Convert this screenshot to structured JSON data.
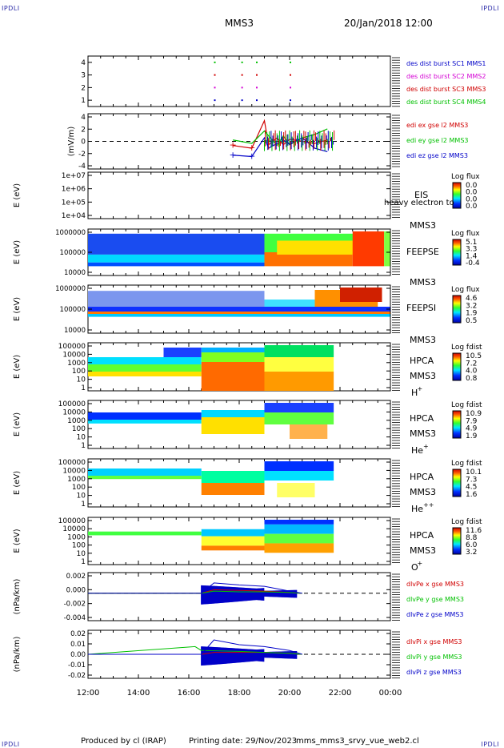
{
  "corners": {
    "tl": "IPDLI",
    "tr": "IPDLI",
    "bl": "IPDLI",
    "br": "IPDLI"
  },
  "header": {
    "spacecraft": "MMS3",
    "datetime": "20/Jan/2018 12:00"
  },
  "footer": {
    "produced_by": "Produced by cl (IRAP)",
    "printing_date": "Printing date: 29/Nov/2023",
    "filename": "mms_mms3_srvy_vue_web2.cl"
  },
  "colors": {
    "sc1": "#0000c8",
    "sc2": "#d400d4",
    "sc3": "#d00000",
    "sc4": "#00c000",
    "x": "#d00000",
    "y": "#00c000",
    "z": "#0000c8"
  },
  "chart_data": [
    {
      "type": "scatter",
      "panel": "dist-burst",
      "ylim": [
        0.5,
        4.5
      ],
      "ytick_labels": [
        "1",
        "2",
        "3",
        "4"
      ],
      "legend": [
        "des dist burst SC1 MMS1",
        "des dist burst SC2 MMS2",
        "des dist burst SC3 MMS3",
        "des dist burst SC4 MMS4"
      ],
      "series": [
        {
          "name": "des dist burst SC1 MMS1",
          "x": [
            "17:00",
            "18:05",
            "18:40",
            "20:00"
          ],
          "y": [
            1,
            1,
            1,
            1
          ]
        },
        {
          "name": "des dist burst SC2 MMS2",
          "x": [
            "17:00",
            "18:05",
            "18:40",
            "20:00"
          ],
          "y": [
            2,
            2,
            2,
            2
          ]
        },
        {
          "name": "des dist burst SC3 MMS3",
          "x": [
            "17:00",
            "18:05",
            "18:40",
            "20:00"
          ],
          "y": [
            3,
            3,
            3,
            3
          ]
        },
        {
          "name": "des dist burst SC4 MMS4",
          "x": [
            "17:00",
            "18:05",
            "18:40",
            "20:00"
          ],
          "y": [
            4,
            4,
            4,
            4
          ]
        }
      ]
    },
    {
      "type": "line",
      "panel": "edi",
      "ylabel": "(mV/m)",
      "ylim": [
        -4,
        4
      ],
      "ytick_labels": [
        "4",
        "2",
        "0",
        "-2",
        "-4"
      ],
      "legend": [
        "edi ex gse l2 MMS3",
        "edi ey gse l2 MMS3",
        "edi ez gse l2 MMS3"
      ],
      "series": [
        {
          "name": "edi ex gse l2 MMS3",
          "x": [
            "17:45",
            "18:30",
            "19:00",
            "19:10",
            "19:30",
            "19:45",
            "20:00",
            "20:30",
            "21:00",
            "21:30"
          ],
          "y": [
            -0.6,
            -1.0,
            3.0,
            -0.5,
            0.5,
            -0.5,
            0.3,
            0.0,
            -0.3,
            0.2
          ]
        },
        {
          "name": "edi ey gse l2 MMS3",
          "x": [
            "17:45",
            "18:30",
            "19:00",
            "19:10",
            "19:30",
            "19:45",
            "20:00",
            "20:30",
            "21:00",
            "21:30"
          ],
          "y": [
            0.2,
            -0.3,
            1.5,
            0.8,
            -0.6,
            0.8,
            -0.5,
            0.5,
            1.0,
            1.8
          ]
        },
        {
          "name": "edi ez gse l2 MMS3",
          "x": [
            "17:45",
            "18:30",
            "19:00",
            "19:10",
            "19:30",
            "19:45",
            "20:00",
            "20:30",
            "21:00",
            "21:30"
          ],
          "y": [
            -2.0,
            -2.2,
            0.5,
            -1.0,
            -0.3,
            0.2,
            -0.4,
            0.5,
            -1.0,
            -1.5
          ]
        }
      ]
    },
    {
      "type": "heatmap",
      "panel": "EIS",
      "ylabel": "E (eV)",
      "ytick_labels": [
        "1e+07",
        "1e+06",
        "1e+05",
        "1e+04"
      ],
      "instrument": "EIS",
      "overlay_label": "heavy electron to",
      "spacecraft_label": "MMS3",
      "colorbar": {
        "label": "Log flux",
        "ticks": [
          "0.0",
          "0.0",
          "0.0",
          "0.0"
        ]
      }
    },
    {
      "type": "heatmap",
      "panel": "FEEPSE",
      "ylabel": "E (eV)",
      "ytick_labels": [
        "1000000",
        "100000",
        "10000"
      ],
      "instrument": "FEEPSE",
      "spacecraft_label": "MMS3",
      "colorbar": {
        "label": "Log flux",
        "ticks": [
          "5.1",
          "3.3",
          "1.4",
          "-0.4"
        ]
      }
    },
    {
      "type": "heatmap",
      "panel": "FEEPSI",
      "ylabel": "E (eV)",
      "ytick_labels": [
        "1000000",
        "100000",
        "10000"
      ],
      "instrument": "FEEPSI",
      "spacecraft_label": "MMS3",
      "colorbar": {
        "label": "Log flux",
        "ticks": [
          "4.6",
          "3.2",
          "1.9",
          "0.5"
        ]
      }
    },
    {
      "type": "heatmap",
      "panel": "HPCA-H",
      "ylabel": "E (eV)",
      "ytick_labels": [
        "100000",
        "10000",
        "1000",
        "100",
        "10",
        "1"
      ],
      "instrument": "HPCA",
      "spacecraft_label": "MMS3",
      "species": "H",
      "species_sup": "+",
      "colorbar": {
        "label": "Log fdist",
        "ticks": [
          "10.5",
          "7.2",
          "4.0",
          "0.8"
        ]
      }
    },
    {
      "type": "heatmap",
      "panel": "HPCA-He+",
      "ylabel": "E (eV)",
      "ytick_labels": [
        "100000",
        "10000",
        "1000",
        "100",
        "10",
        "1"
      ],
      "instrument": "HPCA",
      "spacecraft_label": "MMS3",
      "species": "He",
      "species_sup": "+",
      "colorbar": {
        "label": "Log fdist",
        "ticks": [
          "10.9",
          "7.9",
          "4.9",
          "1.9"
        ]
      }
    },
    {
      "type": "heatmap",
      "panel": "HPCA-He++",
      "ylabel": "E (eV)",
      "ytick_labels": [
        "100000",
        "10000",
        "1000",
        "100",
        "10",
        "1"
      ],
      "instrument": "HPCA",
      "spacecraft_label": "MMS3",
      "species": "He",
      "species_sup": "++",
      "colorbar": {
        "label": "Log fdist",
        "ticks": [
          "10.1",
          "7.3",
          "4.5",
          "1.6"
        ]
      }
    },
    {
      "type": "heatmap",
      "panel": "HPCA-O+",
      "ylabel": "E (eV)",
      "ytick_labels": [
        "100000",
        "10000",
        "1000",
        "100",
        "10",
        "1"
      ],
      "instrument": "HPCA",
      "spacecraft_label": "MMS3",
      "species": "O",
      "species_sup": "+",
      "colorbar": {
        "label": "Log fdist",
        "ticks": [
          "11.6",
          "8.8",
          "6.0",
          "3.2"
        ]
      }
    },
    {
      "type": "line",
      "panel": "dlvPe",
      "ylabel": "(nPa/km)",
      "ylim": [
        -0.004,
        0.003
      ],
      "ytick_labels": [
        "0.002",
        "0.000",
        "-0.002",
        "-0.004"
      ],
      "legend": [
        "dlvPe x gse MMS3",
        "dlvPe y gse MMS3",
        "dlvPe z gse MMS3"
      ],
      "series": [
        {
          "name": "dlvPe x gse MMS3",
          "x": [
            "12:00",
            "16:30",
            "17:00",
            "18:00",
            "19:00",
            "20:00",
            "20:30"
          ],
          "y": [
            0,
            0,
            0.0005,
            0.0004,
            0.0003,
            0.0001,
            0
          ]
        },
        {
          "name": "dlvPe y gse MMS3",
          "x": [
            "12:00",
            "16:30",
            "17:00",
            "18:00",
            "19:00",
            "20:00",
            "20:30"
          ],
          "y": [
            0,
            0,
            0.0003,
            0.0002,
            0.0002,
            0.0001,
            0
          ]
        },
        {
          "name": "dlvPe z gse MMS3",
          "x": [
            "12:00",
            "16:30",
            "17:00",
            "18:00",
            "19:00",
            "20:00",
            "20:30"
          ],
          "y": [
            0,
            0,
            0.0015,
            0.0012,
            0.001,
            0.0003,
            0
          ]
        }
      ]
    },
    {
      "type": "line",
      "panel": "dlvPi",
      "ylabel": "(nPa/km)",
      "ylim": [
        -0.025,
        0.025
      ],
      "ytick_labels": [
        "0.02",
        "0.01",
        "0.00",
        "-0.01",
        "-0.02"
      ],
      "xtick_labels": [
        "12:00",
        "14:00",
        "16:00",
        "18:00",
        "20:00",
        "22:00",
        "00:00"
      ],
      "legend": [
        "dlvPi x gse MMS3",
        "dlvPi y gse MMS3",
        "dlvPi z gse MMS3"
      ],
      "series": [
        {
          "name": "dlvPi x gse MMS3",
          "x": [
            "12:00",
            "16:30",
            "17:00",
            "18:00",
            "19:00",
            "20:00",
            "20:30"
          ],
          "y": [
            0,
            0,
            0.002,
            0.002,
            0.002,
            0.001,
            0
          ]
        },
        {
          "name": "dlvPi y gse MMS3",
          "x": [
            "12:00",
            "16:15",
            "16:30",
            "18:00",
            "19:00",
            "20:00",
            "20:30"
          ],
          "y": [
            0,
            0.008,
            0.004,
            0.003,
            0.002,
            0.001,
            0
          ]
        },
        {
          "name": "dlvPi z gse MMS3",
          "x": [
            "12:00",
            "16:30",
            "17:00",
            "18:00",
            "19:00",
            "20:00",
            "20:30"
          ],
          "y": [
            0,
            0,
            0.015,
            0.01,
            0.008,
            0.004,
            0
          ]
        }
      ]
    }
  ]
}
